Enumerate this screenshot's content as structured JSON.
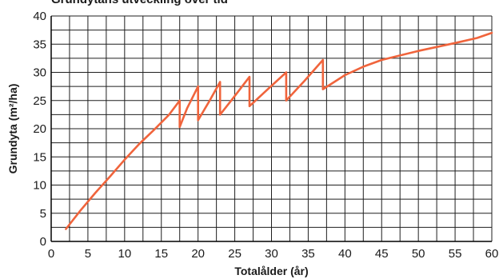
{
  "chart_data": {
    "type": "line",
    "title": "Grundytans utveckling över tid",
    "xlabel": "Totalålder (år)",
    "ylabel": "Grundyta (m²/ha)",
    "xlim": [
      0,
      60
    ],
    "ylim": [
      0,
      40
    ],
    "x_ticks": [
      "0",
      "5",
      "10",
      "15",
      "20",
      "25",
      "30",
      "35",
      "40",
      "45",
      "50",
      "55",
      "60"
    ],
    "y_ticks": [
      "0",
      "5",
      "10",
      "15",
      "20",
      "25",
      "30",
      "35",
      "40"
    ],
    "grid": true,
    "series": [
      {
        "color": "#f0643c",
        "points": [
          [
            2,
            2.2
          ],
          [
            4,
            5.5
          ],
          [
            6,
            8.6
          ],
          [
            8,
            11.5
          ],
          [
            10,
            14.5
          ],
          [
            12,
            17.3
          ],
          [
            14,
            19.8
          ],
          [
            16,
            22.4
          ],
          [
            17.5,
            25
          ],
          [
            17.5,
            20.3
          ],
          [
            18.5,
            23.6
          ],
          [
            20,
            27.5
          ],
          [
            20,
            21.5
          ],
          [
            21.5,
            24.8
          ],
          [
            23,
            28.3
          ],
          [
            23,
            22.5
          ],
          [
            25,
            25.8
          ],
          [
            27,
            29.2
          ],
          [
            27,
            24
          ],
          [
            29.5,
            27
          ],
          [
            32,
            30
          ],
          [
            32,
            25
          ],
          [
            34.5,
            28.5
          ],
          [
            37,
            32.2
          ],
          [
            37,
            27
          ],
          [
            40,
            29.5
          ],
          [
            42.5,
            31
          ],
          [
            45,
            32.2
          ],
          [
            50,
            33.8
          ],
          [
            55,
            35.2
          ],
          [
            58,
            36.1
          ],
          [
            60,
            37
          ]
        ]
      }
    ]
  }
}
